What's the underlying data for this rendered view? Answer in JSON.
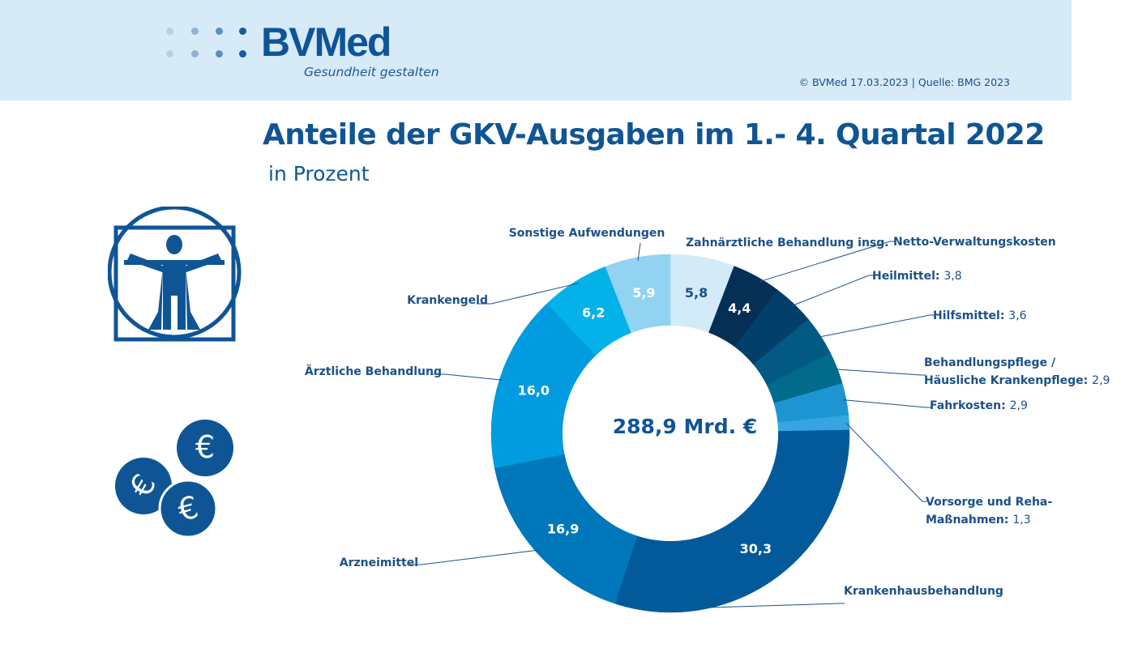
{
  "header": {
    "logo_text": "BVMed",
    "logo_tagline": "Gesundheit gestalten",
    "copyright": "© BVMed 17.03.2023 | Quelle: BMG 2023",
    "background_color": "#d6eaf8"
  },
  "title": "Anteile der GKV-Ausgaben im 1.- 4. Quartal 2022",
  "subtitle": "in Prozent",
  "icons": [
    "vitruvian-man-icon",
    "euro-coins-icon"
  ],
  "chart_data": {
    "type": "pie",
    "variant": "donut",
    "title": "Anteile der GKV-Ausgaben im 1.- 4. Quartal 2022",
    "subtitle": "in Prozent",
    "unit": "%",
    "center_label": "288,9 Mrd. €",
    "start": "top",
    "direction": "clockwise",
    "slices": [
      {
        "label": "Zahnärztliche Behandlung insg.",
        "value": 5.8,
        "display": "5,8",
        "color": "#d3eaf8",
        "value_position": "inside",
        "text_color": "#1c5088"
      },
      {
        "label": "Netto-Verwaltungskosten",
        "value": 4.4,
        "display": "4,4",
        "color": "#062f55",
        "value_position": "inside",
        "text_color": "#ffffff"
      },
      {
        "label": "Heilmittel",
        "value": 3.8,
        "display": "3,8",
        "color": "#033f6b",
        "value_position": "label"
      },
      {
        "label": "Hilfsmittel",
        "value": 3.6,
        "display": "3,6",
        "color": "#025a84",
        "value_position": "label"
      },
      {
        "label": "Behandlungspflege / Häusliche Krankenpflege",
        "label_lines": [
          "Behandlungspflege /",
          "Häusliche Krankenpflege"
        ],
        "value": 2.9,
        "display": "2,9",
        "color": "#026a8a",
        "value_position": "label"
      },
      {
        "label": "Fahrkosten",
        "value": 2.9,
        "display": "2,9",
        "color": "#1e95d3",
        "value_position": "label"
      },
      {
        "label": "Vorsorge und Reha-Maßnahmen",
        "label_lines": [
          "Vorsorge und Reha-",
          "Maßnahmen"
        ],
        "value": 1.3,
        "display": "1,3",
        "color": "#35a6e2",
        "value_position": "label"
      },
      {
        "label": "Krankenhausbehandlung",
        "value": 30.3,
        "display": "30,3",
        "color": "#035a9a",
        "value_position": "inside",
        "text_color": "#ffffff"
      },
      {
        "label": "Arzneimittel",
        "value": 16.9,
        "display": "16,9",
        "color": "#0177bb",
        "value_position": "inside",
        "text_color": "#ffffff"
      },
      {
        "label": "Ärztliche Behandlung",
        "value": 16.0,
        "display": "16,0",
        "color": "#019be0",
        "value_position": "inside",
        "text_color": "#ffffff"
      },
      {
        "label": "Krankengeld",
        "value": 6.2,
        "display": "6,2",
        "color": "#02b2e8",
        "value_position": "inside",
        "text_color": "#ffffff"
      },
      {
        "label": "Sonstige Aufwendungen",
        "value": 5.9,
        "display": "5,9",
        "color": "#92d3f2",
        "value_position": "inside",
        "text_color": "#ffffff"
      }
    ]
  }
}
